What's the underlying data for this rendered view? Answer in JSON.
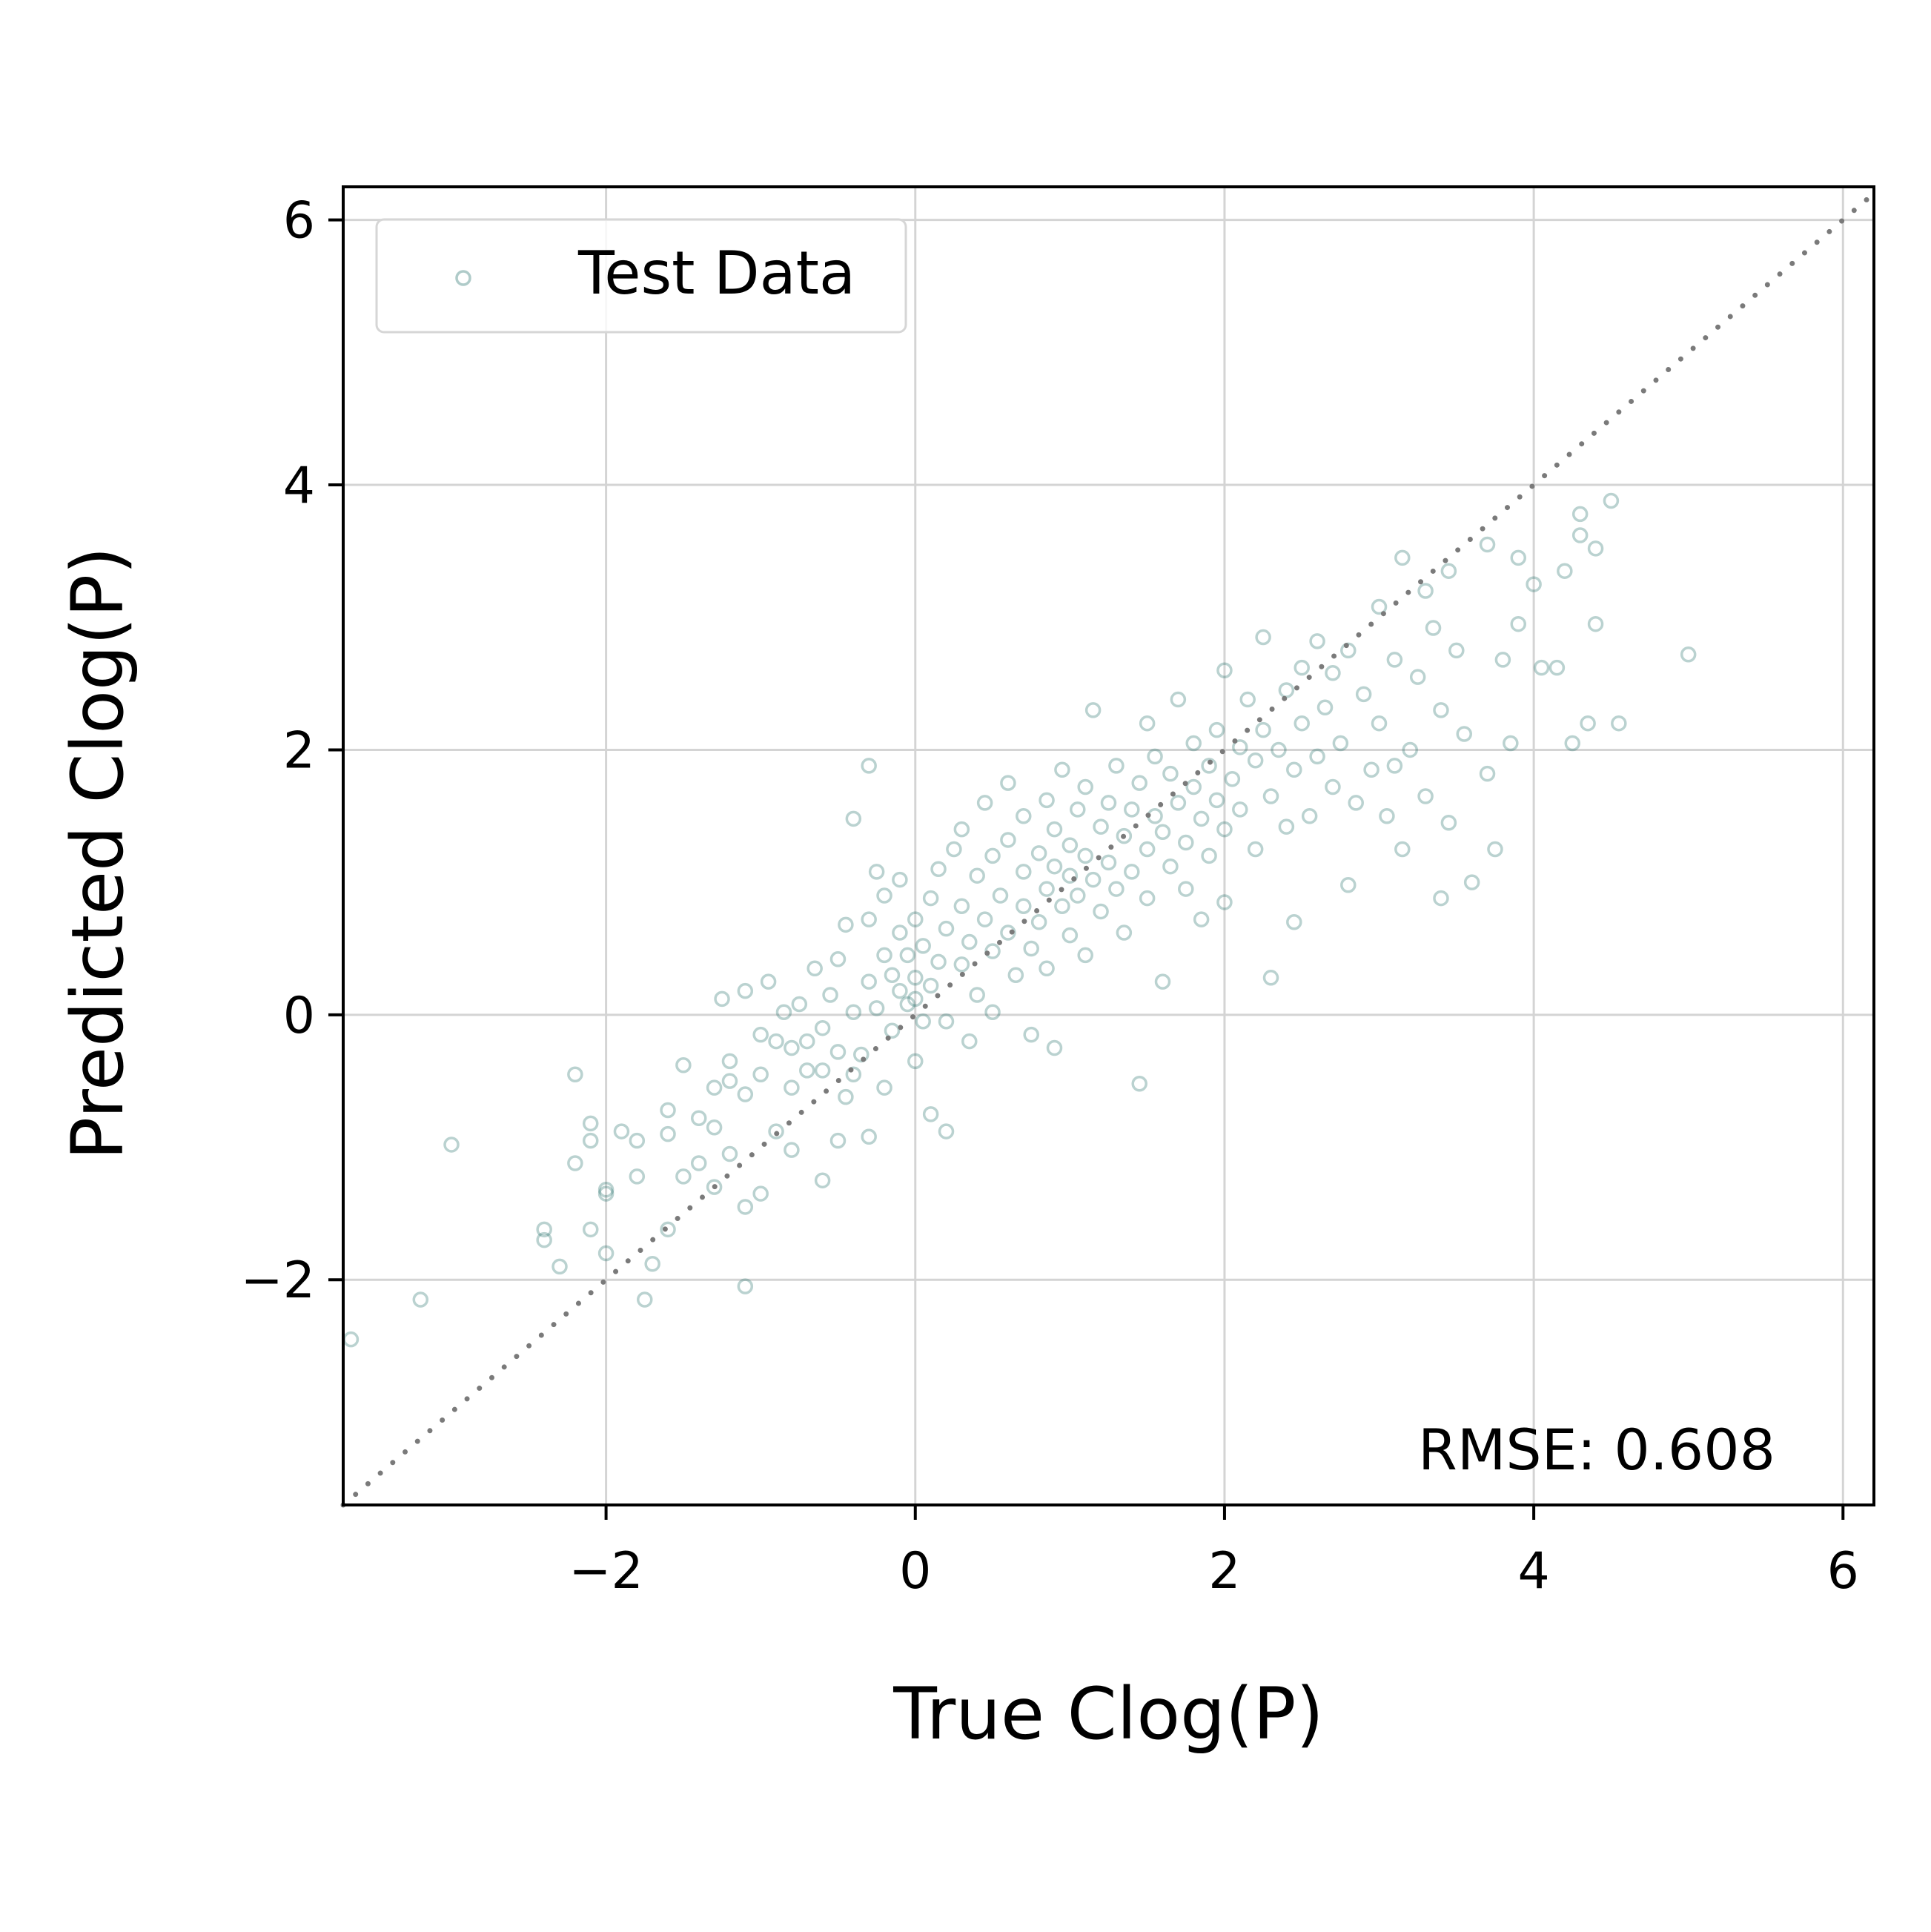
{
  "chart_data": {
    "type": "scatter",
    "xlabel": "True Clog(P)",
    "ylabel": "Predicted Clog(P)",
    "xlim": [
      -3.7,
      6.2
    ],
    "ylim": [
      -3.7,
      6.25
    ],
    "xticks": [
      -2,
      0,
      2,
      4,
      6
    ],
    "yticks": [
      -2,
      0,
      2,
      4,
      6
    ],
    "xtick_labels": [
      "−2",
      "0",
      "2",
      "4",
      "6"
    ],
    "ytick_labels": [
      "−2",
      "0",
      "2",
      "4",
      "6"
    ],
    "grid": true,
    "legend": {
      "position": "top-left",
      "entries": [
        "Test Data"
      ]
    },
    "reference_line": {
      "style": "dotted",
      "color": "#7a7a7a",
      "from": [
        -3.7,
        -3.7
      ],
      "to": [
        6.2,
        6.2
      ]
    },
    "annotation": "RMSE: 0.608",
    "series": [
      {
        "name": "Test Data",
        "color": "#1b6b63",
        "points": [
          [
            -3.65,
            -2.45
          ],
          [
            -3.2,
            -2.15
          ],
          [
            -3.0,
            -0.98
          ],
          [
            -2.4,
            -1.62
          ],
          [
            -2.4,
            -1.7
          ],
          [
            -2.3,
            -1.9
          ],
          [
            -2.2,
            -1.12
          ],
          [
            -2.2,
            -0.45
          ],
          [
            -2.1,
            -0.82
          ],
          [
            -2.1,
            -0.95
          ],
          [
            -2.1,
            -1.62
          ],
          [
            -2.0,
            -1.32
          ],
          [
            -2.0,
            -1.35
          ],
          [
            -2.0,
            -1.8
          ],
          [
            -1.9,
            -0.88
          ],
          [
            -1.8,
            -1.22
          ],
          [
            -1.8,
            -0.95
          ],
          [
            -1.75,
            -2.15
          ],
          [
            -1.7,
            -1.88
          ],
          [
            -1.6,
            -1.62
          ],
          [
            -1.6,
            -0.72
          ],
          [
            -1.6,
            -0.9
          ],
          [
            -1.5,
            -1.22
          ],
          [
            -1.5,
            -0.38
          ],
          [
            -1.4,
            -0.78
          ],
          [
            -1.4,
            -1.12
          ],
          [
            -1.3,
            -0.55
          ],
          [
            -1.3,
            -0.85
          ],
          [
            -1.3,
            -1.3
          ],
          [
            -1.25,
            0.12
          ],
          [
            -1.2,
            -1.05
          ],
          [
            -1.2,
            -0.35
          ],
          [
            -1.2,
            -0.5
          ],
          [
            -1.1,
            -0.6
          ],
          [
            -1.1,
            -1.45
          ],
          [
            -1.1,
            -2.05
          ],
          [
            -1.1,
            0.18
          ],
          [
            -1.0,
            -0.15
          ],
          [
            -1.0,
            -0.45
          ],
          [
            -1.0,
            -1.35
          ],
          [
            -0.95,
            0.25
          ],
          [
            -0.9,
            -0.2
          ],
          [
            -0.9,
            -0.88
          ],
          [
            -0.85,
            0.02
          ],
          [
            -0.8,
            -0.55
          ],
          [
            -0.8,
            -0.25
          ],
          [
            -0.8,
            -1.02
          ],
          [
            -0.75,
            0.08
          ],
          [
            -0.7,
            -0.42
          ],
          [
            -0.7,
            -0.2
          ],
          [
            -0.65,
            0.35
          ],
          [
            -0.6,
            -0.42
          ],
          [
            -0.6,
            -0.1
          ],
          [
            -0.6,
            -1.25
          ],
          [
            -0.55,
            0.15
          ],
          [
            -0.5,
            -0.28
          ],
          [
            -0.5,
            0.42
          ],
          [
            -0.5,
            -0.95
          ],
          [
            -0.45,
            -0.62
          ],
          [
            -0.45,
            0.68
          ],
          [
            -0.4,
            0.02
          ],
          [
            -0.4,
            -0.45
          ],
          [
            -0.4,
            1.48
          ],
          [
            -0.35,
            -0.3
          ],
          [
            -0.3,
            0.25
          ],
          [
            -0.3,
            0.72
          ],
          [
            -0.3,
            1.88
          ],
          [
            -0.3,
            -0.92
          ],
          [
            -0.25,
            0.05
          ],
          [
            -0.25,
            1.08
          ],
          [
            -0.2,
            0.45
          ],
          [
            -0.2,
            0.9
          ],
          [
            -0.2,
            -0.55
          ],
          [
            -0.15,
            0.3
          ],
          [
            -0.15,
            -0.12
          ],
          [
            -0.1,
            0.62
          ],
          [
            -0.1,
            0.18
          ],
          [
            -0.1,
            1.02
          ],
          [
            -0.05,
            0.08
          ],
          [
            -0.05,
            0.45
          ],
          [
            0.0,
            0.12
          ],
          [
            0.0,
            0.72
          ],
          [
            0.0,
            -0.35
          ],
          [
            0.0,
            0.28
          ],
          [
            0.05,
            0.52
          ],
          [
            0.05,
            -0.05
          ],
          [
            0.1,
            0.88
          ],
          [
            0.1,
            0.22
          ],
          [
            0.1,
            -0.75
          ],
          [
            0.15,
            0.4
          ],
          [
            0.15,
            1.1
          ],
          [
            0.2,
            0.65
          ],
          [
            0.2,
            -0.05
          ],
          [
            0.2,
            -0.88
          ],
          [
            0.25,
            1.25
          ],
          [
            0.3,
            0.38
          ],
          [
            0.3,
            0.82
          ],
          [
            0.3,
            1.4
          ],
          [
            0.35,
            0.55
          ],
          [
            0.35,
            -0.2
          ],
          [
            0.4,
            1.05
          ],
          [
            0.4,
            0.15
          ],
          [
            0.45,
            0.72
          ],
          [
            0.45,
            1.6
          ],
          [
            0.5,
            0.48
          ],
          [
            0.5,
            1.2
          ],
          [
            0.5,
            0.02
          ],
          [
            0.55,
            0.9
          ],
          [
            0.6,
            1.32
          ],
          [
            0.6,
            0.62
          ],
          [
            0.6,
            1.75
          ],
          [
            0.65,
            0.3
          ],
          [
            0.7,
            1.08
          ],
          [
            0.7,
            0.82
          ],
          [
            0.7,
            1.5
          ],
          [
            0.75,
            0.5
          ],
          [
            0.75,
            -0.15
          ],
          [
            0.8,
            1.22
          ],
          [
            0.8,
            0.7
          ],
          [
            0.85,
            1.62
          ],
          [
            0.85,
            0.95
          ],
          [
            0.85,
            0.35
          ],
          [
            0.9,
            1.12
          ],
          [
            0.9,
            1.4
          ],
          [
            0.9,
            -0.25
          ],
          [
            0.95,
            0.82
          ],
          [
            0.95,
            1.85
          ],
          [
            1.0,
            1.05
          ],
          [
            1.0,
            0.6
          ],
          [
            1.0,
            1.28
          ],
          [
            1.05,
            1.55
          ],
          [
            1.05,
            0.9
          ],
          [
            1.1,
            1.2
          ],
          [
            1.1,
            0.45
          ],
          [
            1.1,
            1.72
          ],
          [
            1.15,
            1.02
          ],
          [
            1.15,
            2.3
          ],
          [
            1.2,
            1.42
          ],
          [
            1.2,
            0.78
          ],
          [
            1.25,
            1.6
          ],
          [
            1.25,
            1.15
          ],
          [
            1.3,
            0.95
          ],
          [
            1.3,
            1.88
          ],
          [
            1.35,
            1.35
          ],
          [
            1.35,
            0.62
          ],
          [
            1.4,
            1.55
          ],
          [
            1.4,
            1.08
          ],
          [
            1.45,
            1.75
          ],
          [
            1.45,
            -0.52
          ],
          [
            1.5,
            1.25
          ],
          [
            1.5,
            0.88
          ],
          [
            1.5,
            2.2
          ],
          [
            1.55,
            1.5
          ],
          [
            1.55,
            1.95
          ],
          [
            1.6,
            1.38
          ],
          [
            1.6,
            0.25
          ],
          [
            1.65,
            1.82
          ],
          [
            1.65,
            1.12
          ],
          [
            1.7,
            1.6
          ],
          [
            1.7,
            2.38
          ],
          [
            1.75,
            1.3
          ],
          [
            1.75,
            0.95
          ],
          [
            1.8,
            1.72
          ],
          [
            1.8,
            2.05
          ],
          [
            1.85,
            1.48
          ],
          [
            1.85,
            0.72
          ],
          [
            1.9,
            1.88
          ],
          [
            1.9,
            1.2
          ],
          [
            1.95,
            2.15
          ],
          [
            1.95,
            1.62
          ],
          [
            2.0,
            1.4
          ],
          [
            2.0,
            0.85
          ],
          [
            2.0,
            2.6
          ],
          [
            2.05,
            1.78
          ],
          [
            2.1,
            2.02
          ],
          [
            2.1,
            1.55
          ],
          [
            2.15,
            2.38
          ],
          [
            2.2,
            1.92
          ],
          [
            2.2,
            1.25
          ],
          [
            2.25,
            2.15
          ],
          [
            2.25,
            2.85
          ],
          [
            2.3,
            1.65
          ],
          [
            2.3,
            0.28
          ],
          [
            2.35,
            2.0
          ],
          [
            2.4,
            2.45
          ],
          [
            2.4,
            1.42
          ],
          [
            2.45,
            1.85
          ],
          [
            2.45,
            0.7
          ],
          [
            2.5,
            2.2
          ],
          [
            2.5,
            2.62
          ],
          [
            2.55,
            1.5
          ],
          [
            2.6,
            1.95
          ],
          [
            2.6,
            2.82
          ],
          [
            2.65,
            2.32
          ],
          [
            2.7,
            1.72
          ],
          [
            2.7,
            2.58
          ],
          [
            2.75,
            2.05
          ],
          [
            2.8,
            0.98
          ],
          [
            2.8,
            2.75
          ],
          [
            2.85,
            1.6
          ],
          [
            2.9,
            2.42
          ],
          [
            2.95,
            1.85
          ],
          [
            3.0,
            2.2
          ],
          [
            3.0,
            3.08
          ],
          [
            3.05,
            1.5
          ],
          [
            3.1,
            1.88
          ],
          [
            3.1,
            2.68
          ],
          [
            3.15,
            1.25
          ],
          [
            3.15,
            3.45
          ],
          [
            3.2,
            2.0
          ],
          [
            3.25,
            2.55
          ],
          [
            3.3,
            1.65
          ],
          [
            3.3,
            3.2
          ],
          [
            3.35,
            2.92
          ],
          [
            3.4,
            0.88
          ],
          [
            3.4,
            2.3
          ],
          [
            3.45,
            1.45
          ],
          [
            3.45,
            3.35
          ],
          [
            3.5,
            2.75
          ],
          [
            3.55,
            2.12
          ],
          [
            3.6,
            1.0
          ],
          [
            3.7,
            1.82
          ],
          [
            3.7,
            3.55
          ],
          [
            3.75,
            1.25
          ],
          [
            3.8,
            2.68
          ],
          [
            3.85,
            2.05
          ],
          [
            3.9,
            2.95
          ],
          [
            3.9,
            3.45
          ],
          [
            4.0,
            3.25
          ],
          [
            4.05,
            2.62
          ],
          [
            4.15,
            2.62
          ],
          [
            4.2,
            3.35
          ],
          [
            4.25,
            2.05
          ],
          [
            4.3,
            3.78
          ],
          [
            4.3,
            3.62
          ],
          [
            4.35,
            2.2
          ],
          [
            4.4,
            3.52
          ],
          [
            4.4,
            2.95
          ],
          [
            4.5,
            3.88
          ],
          [
            4.55,
            2.2
          ],
          [
            5.0,
            2.72
          ]
        ]
      }
    ]
  }
}
